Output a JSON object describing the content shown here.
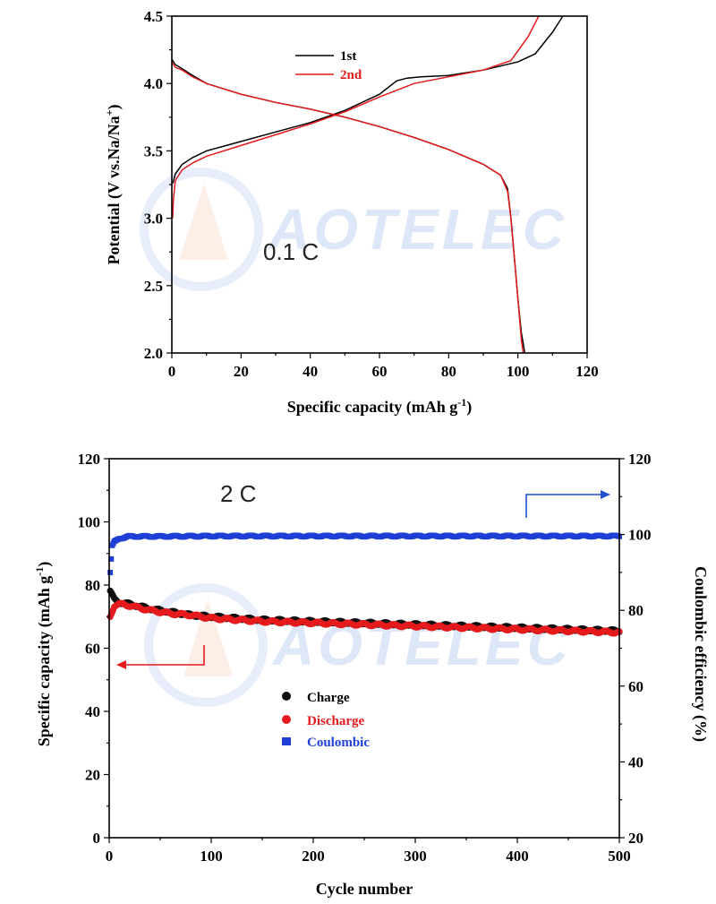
{
  "watermark": "AOTELEC",
  "chart_data": [
    {
      "type": "line",
      "annotation": "0.1 C",
      "xlabel": "Specific capacity (mAh g",
      "xlabel_sup": "-1",
      "xlabel_end": ")",
      "ylabel": "Potential (V vs.Na/Na",
      "ylabel_sup": "+",
      "ylabel_end": ")",
      "xlim": [
        0,
        120
      ],
      "ylim": [
        2.0,
        4.5
      ],
      "xticks": [
        "0",
        "20",
        "40",
        "60",
        "80",
        "100",
        "120"
      ],
      "yticks": [
        "2.0",
        "2.5",
        "3.0",
        "3.5",
        "4.0",
        "4.5"
      ],
      "legend_position": "top-left",
      "series": [
        {
          "name": "1st",
          "color": "#000000",
          "charge": [
            [
              0.3,
              3.26
            ],
            [
              1,
              3.33
            ],
            [
              3,
              3.4
            ],
            [
              6,
              3.45
            ],
            [
              10,
              3.5
            ],
            [
              20,
              3.57
            ],
            [
              30,
              3.64
            ],
            [
              40,
              3.71
            ],
            [
              50,
              3.8
            ],
            [
              60,
              3.92
            ],
            [
              65,
              4.02
            ],
            [
              68,
              4.04
            ],
            [
              72,
              4.05
            ],
            [
              80,
              4.06
            ],
            [
              90,
              4.1
            ],
            [
              100,
              4.16
            ],
            [
              105,
              4.22
            ],
            [
              110,
              4.38
            ],
            [
              113,
              4.5
            ]
          ],
          "discharge": [
            [
              0,
              4.18
            ],
            [
              1,
              4.14
            ],
            [
              3,
              4.11
            ],
            [
              6,
              4.06
            ],
            [
              10,
              4.0
            ],
            [
              20,
              3.92
            ],
            [
              30,
              3.86
            ],
            [
              40,
              3.81
            ],
            [
              50,
              3.75
            ],
            [
              60,
              3.68
            ],
            [
              70,
              3.6
            ],
            [
              80,
              3.51
            ],
            [
              90,
              3.4
            ],
            [
              95,
              3.32
            ],
            [
              97,
              3.22
            ],
            [
              98,
              3.0
            ],
            [
              99,
              2.7
            ],
            [
              100,
              2.4
            ],
            [
              101,
              2.15
            ],
            [
              102,
              2.0
            ]
          ]
        },
        {
          "name": "2nd",
          "color": "#e41a1c",
          "charge": [
            [
              0.2,
              3.0
            ],
            [
              0.5,
              3.15
            ],
            [
              1,
              3.28
            ],
            [
              3,
              3.36
            ],
            [
              6,
              3.41
            ],
            [
              10,
              3.46
            ],
            [
              20,
              3.54
            ],
            [
              30,
              3.62
            ],
            [
              40,
              3.7
            ],
            [
              50,
              3.79
            ],
            [
              60,
              3.9
            ],
            [
              70,
              4.0
            ],
            [
              80,
              4.05
            ],
            [
              90,
              4.1
            ],
            [
              98,
              4.17
            ],
            [
              103,
              4.35
            ],
            [
              106,
              4.5
            ]
          ],
          "discharge": [
            [
              0,
              4.16
            ],
            [
              1,
              4.12
            ],
            [
              3,
              4.1
            ],
            [
              6,
              4.05
            ],
            [
              10,
              4.0
            ],
            [
              20,
              3.92
            ],
            [
              30,
              3.86
            ],
            [
              40,
              3.81
            ],
            [
              50,
              3.75
            ],
            [
              60,
              3.68
            ],
            [
              70,
              3.6
            ],
            [
              80,
              3.51
            ],
            [
              90,
              3.4
            ],
            [
              95,
              3.32
            ],
            [
              97,
              3.2
            ],
            [
              98,
              3.0
            ],
            [
              99,
              2.7
            ],
            [
              100,
              2.4
            ],
            [
              101,
              2.1
            ],
            [
              101.5,
              2.0
            ]
          ]
        }
      ]
    },
    {
      "type": "scatter",
      "annotation": "2 C",
      "xlabel": "Cycle number",
      "ylabel_left": "Specific capacity (mAh g",
      "ylabel_left_sup": "-1",
      "ylabel_left_end": ")",
      "ylabel_right": "Coulombic efficiency (%)",
      "xlim": [
        0,
        500
      ],
      "ylim_left": [
        0,
        120
      ],
      "ylim_right": [
        20,
        120
      ],
      "xticks": [
        "0",
        "100",
        "200",
        "300",
        "400",
        "500"
      ],
      "yticks_left": [
        "0",
        "20",
        "40",
        "60",
        "80",
        "100",
        "120"
      ],
      "yticks_right": [
        "20",
        "40",
        "60",
        "80",
        "100",
        "120"
      ],
      "legend_position": "bottom-center",
      "series": [
        {
          "name": "Charge",
          "color": "#111111",
          "marker": "circle",
          "axis": "left",
          "x": [
            1,
            5,
            10,
            20,
            40,
            60,
            80,
            100,
            150,
            200,
            250,
            300,
            350,
            400,
            450,
            500
          ],
          "values": [
            78,
            75.5,
            74.5,
            74,
            72.5,
            71.5,
            70.5,
            70,
            69,
            68.5,
            68,
            67.5,
            67,
            66.5,
            66,
            65.5
          ]
        },
        {
          "name": "Discharge",
          "color": "#e41a1c",
          "marker": "circle",
          "axis": "left",
          "x": [
            1,
            5,
            10,
            20,
            40,
            60,
            80,
            100,
            150,
            200,
            250,
            300,
            350,
            400,
            450,
            500
          ],
          "values": [
            70,
            73.5,
            74,
            73.5,
            72,
            71,
            70.5,
            69.5,
            68.5,
            68,
            67.5,
            67,
            66.5,
            66,
            65.5,
            65
          ]
        },
        {
          "name": "Coulombic",
          "color": "#1f3fd6",
          "marker": "square",
          "axis": "right",
          "x": [
            1,
            3,
            5,
            10,
            20,
            50,
            100,
            150,
            200,
            250,
            300,
            350,
            400,
            450,
            500
          ],
          "values": [
            90,
            97,
            98,
            99,
            99.5,
            99.5,
            99.6,
            99.6,
            99.6,
            99.6,
            99.6,
            99.6,
            99.6,
            99.6,
            99.6
          ]
        }
      ]
    }
  ]
}
